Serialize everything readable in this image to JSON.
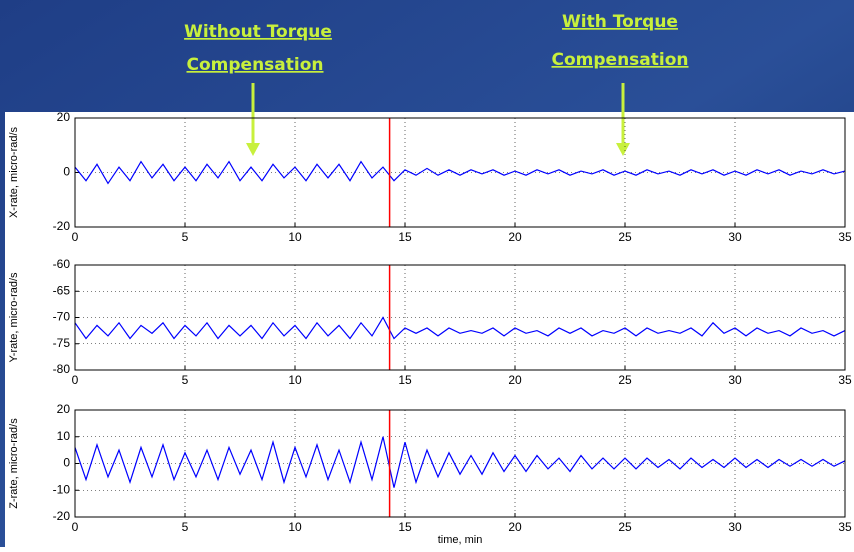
{
  "annotations": [
    {
      "lines": [
        "Without Torque ",
        "Compensation"
      ]
    },
    {
      "lines": [
        "With Torque ",
        "Compensation"
      ]
    }
  ],
  "chart_data": [
    {
      "type": "line",
      "ylabel": "X-rate, micro-rad/s",
      "xlim": [
        0,
        35
      ],
      "xticks": [
        0,
        5,
        10,
        15,
        20,
        25,
        30,
        35
      ],
      "ylim": [
        -20,
        20
      ],
      "yticks": [
        -20,
        0,
        20
      ],
      "grid": true,
      "marker_x": 14.3,
      "marker_color": "#ff0000",
      "x": [
        0,
        0.5,
        1,
        1.5,
        2,
        2.5,
        3,
        3.5,
        4,
        4.5,
        5,
        5.5,
        6,
        6.5,
        7,
        7.5,
        8,
        8.5,
        9,
        9.5,
        10,
        10.5,
        11,
        11.5,
        12,
        12.5,
        13,
        13.5,
        14,
        14.5,
        15,
        15.5,
        16,
        16.5,
        17,
        17.5,
        18,
        18.5,
        19,
        19.5,
        20,
        20.5,
        21,
        21.5,
        22,
        22.5,
        23,
        23.5,
        24,
        24.5,
        25,
        25.5,
        26,
        26.5,
        27,
        27.5,
        28,
        28.5,
        29,
        29.5,
        30,
        30.5,
        31,
        31.5,
        32,
        32.5,
        33,
        33.5,
        34,
        34.5,
        35
      ],
      "series": [
        {
          "color": "#0000ff",
          "values": [
            2,
            -3,
            3,
            -4,
            2,
            -3,
            4,
            -2,
            3,
            -3,
            2,
            -3,
            3,
            -2,
            4,
            -3,
            2,
            -3,
            3,
            -2,
            2,
            -3,
            3,
            -2,
            3,
            -3,
            4,
            -2,
            2,
            -3,
            1,
            -1,
            1.5,
            -1,
            1,
            -1,
            1,
            -0.5,
            1,
            -1,
            0.5,
            -1,
            1,
            -0.5,
            1,
            -1,
            0.5,
            -0.5,
            1,
            -1,
            0.5,
            -1,
            1,
            -0.5,
            0.5,
            -1,
            1,
            -0.5,
            1,
            -1,
            0.5,
            -1,
            1,
            -0.5,
            1,
            -1,
            0.5,
            -0.5,
            1,
            -0.5,
            0.5
          ]
        }
      ]
    },
    {
      "type": "line",
      "ylabel": "Y-rate, micro-rad/s",
      "xlim": [
        0,
        35
      ],
      "xticks": [
        0,
        5,
        10,
        15,
        20,
        25,
        30,
        35
      ],
      "ylim": [
        -80,
        -60
      ],
      "yticks": [
        -80,
        -75,
        -70,
        -65,
        -60
      ],
      "grid": true,
      "marker_x": 14.3,
      "marker_color": "#ff0000",
      "x": [
        0,
        0.5,
        1,
        1.5,
        2,
        2.5,
        3,
        3.5,
        4,
        4.5,
        5,
        5.5,
        6,
        6.5,
        7,
        7.5,
        8,
        8.5,
        9,
        9.5,
        10,
        10.5,
        11,
        11.5,
        12,
        12.5,
        13,
        13.5,
        14,
        14.5,
        15,
        15.5,
        16,
        16.5,
        17,
        17.5,
        18,
        18.5,
        19,
        19.5,
        20,
        20.5,
        21,
        21.5,
        22,
        22.5,
        23,
        23.5,
        24,
        24.5,
        25,
        25.5,
        26,
        26.5,
        27,
        27.5,
        28,
        28.5,
        29,
        29.5,
        30,
        30.5,
        31,
        31.5,
        32,
        32.5,
        33,
        33.5,
        34,
        34.5,
        35
      ],
      "series": [
        {
          "color": "#0000ff",
          "values": [
            -71,
            -74,
            -71.5,
            -73.5,
            -71,
            -74,
            -71.5,
            -73,
            -71,
            -74,
            -71.5,
            -73.5,
            -71,
            -74,
            -71.5,
            -73.5,
            -71.5,
            -74,
            -71,
            -73.5,
            -71.5,
            -74,
            -71,
            -73.5,
            -71.5,
            -74,
            -71,
            -73.5,
            -70,
            -74,
            -72,
            -73,
            -72,
            -73.5,
            -72,
            -73,
            -72.5,
            -73,
            -72,
            -73.5,
            -72,
            -73,
            -72.5,
            -73.5,
            -72,
            -73,
            -72,
            -73.5,
            -72.5,
            -73,
            -72,
            -73.5,
            -72,
            -73,
            -72.5,
            -73,
            -72,
            -73.5,
            -71,
            -73,
            -72,
            -73.5,
            -72,
            -73,
            -72.5,
            -73.5,
            -72,
            -73,
            -72.5,
            -73.5,
            -72.5
          ]
        }
      ]
    },
    {
      "type": "line",
      "ylabel": "Z-rate, micro-rad/s",
      "xlabel": "time, min",
      "xlim": [
        0,
        35
      ],
      "xticks": [
        0,
        5,
        10,
        15,
        20,
        25,
        30,
        35
      ],
      "ylim": [
        -20,
        20
      ],
      "yticks": [
        -20,
        -10,
        0,
        10,
        20
      ],
      "grid": true,
      "marker_x": 14.3,
      "marker_color": "#ff0000",
      "x": [
        0,
        0.5,
        1,
        1.5,
        2,
        2.5,
        3,
        3.5,
        4,
        4.5,
        5,
        5.5,
        6,
        6.5,
        7,
        7.5,
        8,
        8.5,
        9,
        9.5,
        10,
        10.5,
        11,
        11.5,
        12,
        12.5,
        13,
        13.5,
        14,
        14.5,
        15,
        15.5,
        16,
        16.5,
        17,
        17.5,
        18,
        18.5,
        19,
        19.5,
        20,
        20.5,
        21,
        21.5,
        22,
        22.5,
        23,
        23.5,
        24,
        24.5,
        25,
        25.5,
        26,
        26.5,
        27,
        27.5,
        28,
        28.5,
        29,
        29.5,
        30,
        30.5,
        31,
        31.5,
        32,
        32.5,
        33,
        33.5,
        34,
        34.5,
        35
      ],
      "series": [
        {
          "color": "#0000ff",
          "values": [
            6,
            -6,
            7,
            -5,
            5,
            -7,
            6,
            -5,
            7,
            -6,
            4,
            -5,
            5,
            -6,
            6,
            -4,
            5,
            -6,
            8,
            -7,
            6,
            -5,
            7,
            -6,
            5,
            -7,
            8,
            -6,
            10,
            -9,
            8,
            -7,
            5,
            -5,
            4,
            -4,
            3,
            -4,
            4,
            -3,
            3,
            -3,
            3,
            -2,
            2,
            -3,
            3,
            -2,
            2,
            -2,
            2,
            -2,
            2,
            -1.5,
            1.5,
            -2,
            2,
            -1.5,
            1.5,
            -1.5,
            2,
            -1.5,
            1.5,
            -1.5,
            1.5,
            -1,
            1.5,
            -1,
            1.5,
            -1,
            1
          ]
        }
      ]
    }
  ]
}
